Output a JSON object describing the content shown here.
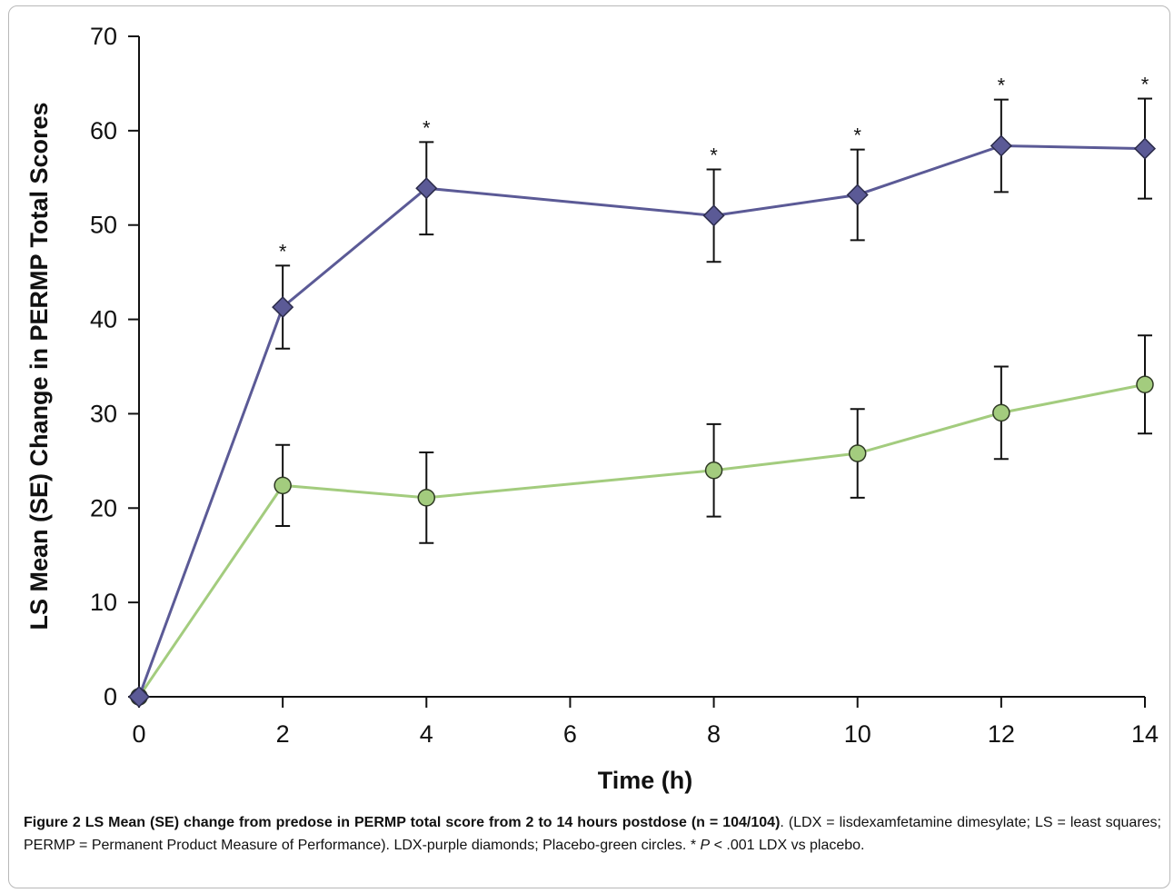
{
  "chart_data": {
    "type": "line",
    "xlabel": "Time (h)",
    "ylabel": "LS Mean (SE) Change in PERMP Total Scores",
    "xlim": [
      0,
      14
    ],
    "ylim": [
      0,
      70
    ],
    "x_ticks": [
      0,
      2,
      4,
      6,
      8,
      10,
      12,
      14
    ],
    "y_ticks": [
      0,
      10,
      20,
      30,
      40,
      50,
      60,
      70
    ],
    "grid": false,
    "legend": "none",
    "series": [
      {
        "marker": "diamond",
        "color": "#5b5a96",
        "x": [
          0,
          2,
          4,
          8,
          10,
          12,
          14
        ],
        "y": [
          0,
          41.3,
          53.9,
          51.0,
          53.2,
          58.4,
          58.1
        ],
        "se": [
          0,
          4.4,
          4.9,
          4.9,
          4.8,
          4.9,
          5.3
        ],
        "significance_marks": [
          "",
          "*",
          "*",
          "*",
          "*",
          "*",
          "*"
        ]
      },
      {
        "marker": "circle",
        "color": "#a3cc7e",
        "x": [
          0,
          2,
          4,
          8,
          10,
          12,
          14
        ],
        "y": [
          0,
          22.4,
          21.1,
          24.0,
          25.8,
          30.1,
          33.1
        ],
        "se": [
          0,
          4.3,
          4.8,
          4.9,
          4.7,
          4.9,
          5.2
        ]
      }
    ]
  },
  "caption": {
    "title": "Figure 2 LS Mean (SE) change from predose in PERMP total score from 2 to 14 hours postdose (n = 104/104)",
    "text_a": ". (LDX = lisdexamfetamine dimesylate; LS = least squares; PERMP = Permanent Product Measure of Performance). LDX-purple diamonds; Placebo-green circles. * ",
    "p_symbol": "P",
    "text_b": " < .001 LDX vs placebo."
  }
}
